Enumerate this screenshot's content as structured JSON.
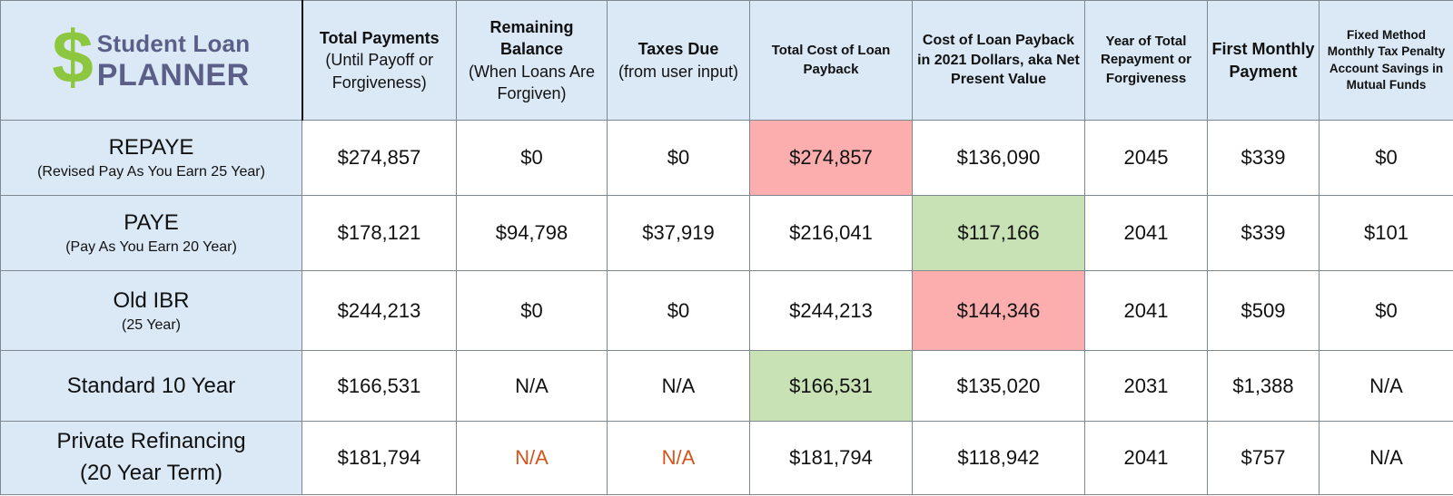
{
  "logo": {
    "dollar": "$",
    "line1": "Student Loan",
    "line2": "PLANNER"
  },
  "colors": {
    "header_bg": "#dbe9f6",
    "worst_highlight": "#fcaeae",
    "best_highlight": "#c8e1b5",
    "na_accent": "#d4541c",
    "logo_green": "#8dc63f",
    "logo_navy": "#5b5f88"
  },
  "headers": {
    "total_payments": {
      "title": "Total Payments",
      "sub": "(Until Payoff or Forgiveness)"
    },
    "remaining_balance": {
      "title": "Remaining Balance",
      "sub": "(When Loans Are Forgiven)"
    },
    "taxes_due": {
      "title": "Taxes Due",
      "sub": "(from user input)"
    },
    "total_cost": {
      "title": "Total Cost of Loan Payback"
    },
    "npv": {
      "title": "Cost of Loan Payback in 2021 Dollars, aka Net Present Value"
    },
    "year": {
      "title": "Year of Total Repayment or Forgiveness"
    },
    "first_payment": {
      "title": "First Monthly Payment"
    },
    "tax_savings": {
      "title": "Fixed Method Monthly Tax Penalty Account Savings in Mutual Funds"
    }
  },
  "rows": [
    {
      "plan": "REPAYE",
      "subtitle": "(Revised Pay As You Earn 25 Year)",
      "total_payments": "$274,857",
      "remaining_balance": "$0",
      "taxes_due": "$0",
      "total_cost": "$274,857",
      "npv": "$136,090",
      "year": "2045",
      "first_payment": "$339",
      "tax_savings": "$0"
    },
    {
      "plan": "PAYE",
      "subtitle": "(Pay As You Earn 20 Year)",
      "total_payments": "$178,121",
      "remaining_balance": "$94,798",
      "taxes_due": "$37,919",
      "total_cost": "$216,041",
      "npv": "$117,166",
      "year": "2041",
      "first_payment": "$339",
      "tax_savings": "$101"
    },
    {
      "plan": "Old IBR",
      "subtitle": "(25 Year)",
      "total_payments": "$244,213",
      "remaining_balance": "$0",
      "taxes_due": "$0",
      "total_cost": "$244,213",
      "npv": "$144,346",
      "year": "2041",
      "first_payment": "$509",
      "tax_savings": "$0"
    },
    {
      "plan": "Standard 10 Year",
      "subtitle": "",
      "total_payments": "$166,531",
      "remaining_balance": "N/A",
      "taxes_due": "N/A",
      "total_cost": "$166,531",
      "npv": "$135,020",
      "year": "2031",
      "first_payment": "$1,388",
      "tax_savings": "N/A"
    },
    {
      "plan": "Private Refinancing",
      "subtitle": "(20 Year Term)",
      "total_payments": "$181,794",
      "remaining_balance": "N/A",
      "taxes_due": "N/A",
      "total_cost": "$181,794",
      "npv": "$118,942",
      "year": "2041",
      "first_payment": "$757",
      "tax_savings": "N/A"
    }
  ]
}
